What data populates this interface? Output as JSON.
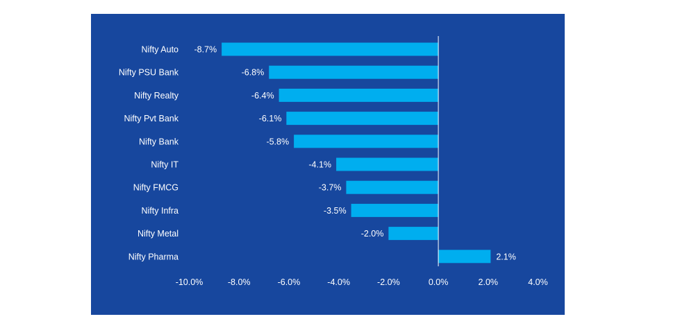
{
  "chart_data": {
    "type": "bar",
    "orientation": "horizontal",
    "categories": [
      "Nifty Auto",
      "Nifty PSU Bank",
      "Nifty Realty",
      "Nifty Pvt Bank",
      "Nifty Bank",
      "Nifty IT",
      "Nifty FMCG",
      "Nifty Infra",
      "Nifty Metal",
      "Nifty Pharma"
    ],
    "values": [
      -8.7,
      -6.8,
      -6.4,
      -6.1,
      -5.8,
      -4.1,
      -3.7,
      -3.5,
      -2.0,
      2.1
    ],
    "value_labels": [
      "-8.7%",
      "-6.8%",
      "-6.4%",
      "-6.1%",
      "-5.8%",
      "-4.1%",
      "-3.7%",
      "-3.5%",
      "-2.0%",
      "2.1%"
    ],
    "xlim": [
      -10,
      4
    ],
    "x_ticks": [
      -10,
      -8,
      -6,
      -4,
      -2,
      0,
      2,
      4
    ],
    "x_tick_labels": [
      "-10.0%",
      "-8.0%",
      "-6.0%",
      "-4.0%",
      "-2.0%",
      "0.0%",
      "2.0%",
      "4.0%"
    ],
    "title": "",
    "xlabel": "",
    "ylabel": "",
    "grid": false,
    "colors": {
      "background": "#17479e",
      "bar": "#00aeef",
      "axis": "#ffffff",
      "text": "#ffffff"
    }
  }
}
